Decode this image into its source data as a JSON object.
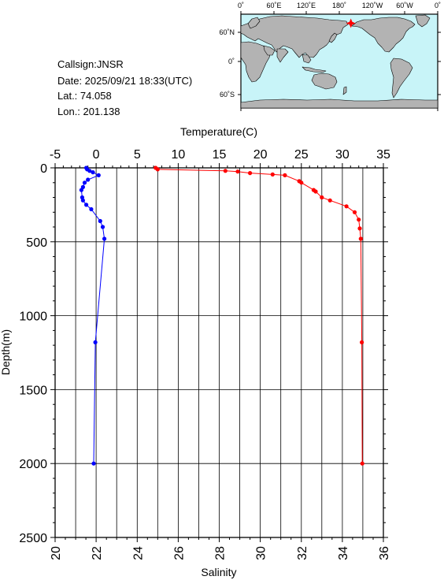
{
  "info": {
    "callsign": "Callsign:JNSR",
    "date": "Date:  2025/09/21 18:33(UTC)",
    "lat": "Lat.:  74.058",
    "lon": "Lon.:  201.138"
  },
  "map": {
    "top_ticks": [
      "0˚",
      "60˚E",
      "120˚E",
      "180˚",
      "120˚W",
      "60˚W",
      "0˚"
    ],
    "left_ticks": [
      "60˚N",
      "0˚",
      "60˚S"
    ],
    "ocean_color": "#c8f4f8",
    "land_color": "#b3b3b3",
    "marker_color": "#ff0000",
    "marker_lon": 201.138,
    "marker_lat": 74.058
  },
  "chart_data": {
    "type": "scatter",
    "xlabel_top": "Temperature(C)",
    "xlabel_bottom": "Salinity",
    "ylabel": "Depth(m)",
    "temperature_lim": [
      -5,
      35
    ],
    "salinity_lim": [
      20,
      36
    ],
    "depth_lim": [
      0,
      2500
    ],
    "temperature_ticks": [
      "-5",
      "0",
      "5",
      "10",
      "15",
      "20",
      "25",
      "30",
      "35"
    ],
    "salinity_ticks": [
      "20",
      "22",
      "24",
      "26",
      "28",
      "30",
      "32",
      "34",
      "36"
    ],
    "depth_ticks": [
      "0",
      "500",
      "1000",
      "1500",
      "2000",
      "2500"
    ],
    "grid": true,
    "series": [
      {
        "color": "#0000ff",
        "axis": "temperature",
        "points": [
          {
            "x": -1.2,
            "y": 0
          },
          {
            "x": -1.1,
            "y": 10
          },
          {
            "x": -0.8,
            "y": 20
          },
          {
            "x": -0.4,
            "y": 30
          },
          {
            "x": 0.3,
            "y": 50
          },
          {
            "x": -1.0,
            "y": 80
          },
          {
            "x": -1.4,
            "y": 100
          },
          {
            "x": -1.6,
            "y": 130
          },
          {
            "x": -1.8,
            "y": 150
          },
          {
            "x": -1.7,
            "y": 200
          },
          {
            "x": -1.6,
            "y": 220
          },
          {
            "x": -1.2,
            "y": 250
          },
          {
            "x": -0.6,
            "y": 280
          },
          {
            "x": 0.5,
            "y": 360
          },
          {
            "x": 0.8,
            "y": 400
          },
          {
            "x": 1.0,
            "y": 480
          },
          {
            "x": -0.1,
            "y": 1180
          },
          {
            "x": -0.3,
            "y": 2000
          }
        ]
      },
      {
        "color": "#ff0000",
        "axis": "salinity",
        "points": [
          {
            "x": 24.9,
            "y": 0
          },
          {
            "x": 25.0,
            "y": 10
          },
          {
            "x": 28.3,
            "y": 20
          },
          {
            "x": 28.9,
            "y": 25
          },
          {
            "x": 29.5,
            "y": 35
          },
          {
            "x": 30.6,
            "y": 45
          },
          {
            "x": 31.2,
            "y": 50
          },
          {
            "x": 31.9,
            "y": 90
          },
          {
            "x": 32.0,
            "y": 100
          },
          {
            "x": 32.6,
            "y": 150
          },
          {
            "x": 32.7,
            "y": 160
          },
          {
            "x": 33.0,
            "y": 200
          },
          {
            "x": 33.4,
            "y": 220
          },
          {
            "x": 34.2,
            "y": 260
          },
          {
            "x": 34.6,
            "y": 300
          },
          {
            "x": 34.8,
            "y": 350
          },
          {
            "x": 34.85,
            "y": 410
          },
          {
            "x": 34.9,
            "y": 480
          },
          {
            "x": 34.95,
            "y": 1180
          },
          {
            "x": 34.97,
            "y": 2000
          }
        ]
      }
    ]
  }
}
